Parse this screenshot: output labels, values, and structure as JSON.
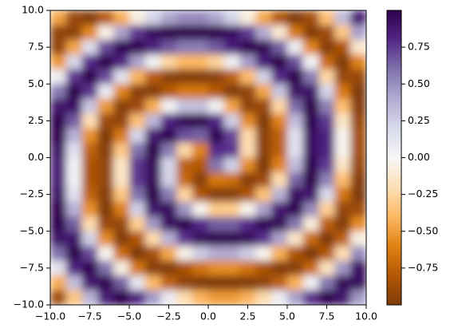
{
  "chart_data": {
    "type": "heatmap",
    "x": [
      -9.5,
      -8.5,
      -7.5,
      -6.5,
      -5.5,
      -4.5,
      -3.5,
      -2.5,
      -1.5,
      -0.5,
      0.5,
      1.5,
      2.5,
      3.5,
      4.5,
      5.5,
      6.5,
      7.5,
      8.5,
      9.5
    ],
    "y": [
      9.5,
      8.5,
      7.5,
      6.5,
      5.5,
      4.5,
      3.5,
      2.5,
      1.5,
      0.5,
      -0.5,
      -1.5,
      -2.5,
      -3.5,
      -4.5,
      -5.5,
      -6.5,
      -7.5,
      -8.5,
      -9.5
    ],
    "z": [
      [
        -0.47,
        -0.9,
        -0.99,
        -0.79,
        -0.44,
        -0.07,
        0.22,
        0.42,
        0.51,
        0.51,
        0.42,
        0.22,
        -0.08,
        -0.46,
        -0.82,
        -1,
        -0.86,
        -0.36,
        0.33,
        0.88
      ],
      [
        -0.94,
        -0.95,
        -0.58,
        -0.05,
        0.43,
        0.76,
        0.93,
        0.99,
        1,
        1,
        0.99,
        0.93,
        0.75,
        0.4,
        -0.11,
        -0.65,
        -0.98,
        -0.88,
        -0.32,
        0.44
      ],
      [
        -0.93,
        -0.47,
        0.17,
        0.71,
        0.97,
        0.98,
        0.83,
        0.67,
        0.56,
        0.56,
        0.67,
        0.84,
        0.98,
        0.96,
        0.65,
        0.06,
        -0.6,
        -0.98,
        -0.82,
        -0.13
      ],
      [
        -0.52,
        0.21,
        0.8,
        1,
        0.82,
        0.43,
        0.03,
        -0.25,
        -0.4,
        -0.4,
        -0.26,
        0.04,
        0.46,
        0.85,
        1,
        0.7,
        0.02,
        -0.71,
        -1,
        -0.61
      ],
      [
        0.06,
        0.76,
        1,
        0.71,
        0.14,
        -0.42,
        -0.78,
        -0.95,
        -0.99,
        -0.99,
        -0.95,
        -0.77,
        -0.38,
        0.23,
        0.81,
        0.99,
        0.57,
        -0.24,
        -0.9,
        -0.9
      ],
      [
        0.57,
        0.99,
        0.76,
        0.09,
        -0.59,
        -0.96,
        -0.97,
        -0.8,
        -0.65,
        -0.65,
        -0.8,
        -0.98,
        -0.93,
        -0.47,
        0.29,
        0.91,
        0.9,
        0.22,
        -0.65,
        -1
      ],
      [
        0.89,
        0.92,
        0.28,
        -0.52,
        -0.97,
        -0.88,
        -0.44,
        0.03,
        0.3,
        0.31,
        0.03,
        -0.48,
        -0.94,
        -0.9,
        -0.24,
        0.62,
        1,
        0.55,
        -0.37,
        -0.98
      ],
      [
        1,
        0.66,
        -0.2,
        -0.89,
        -0.93,
        -0.36,
        0.35,
        0.82,
        0.97,
        0.98,
        0.82,
        0.25,
        -0.57,
        -1,
        -0.6,
        0.33,
        0.97,
        0.75,
        -0.15,
        -0.91
      ],
      [
        0.98,
        0.37,
        -0.55,
        -1,
        -0.63,
        0.22,
        0.88,
        0.97,
        0.69,
        0.64,
        0.97,
        0.72,
        -0.23,
        -0.95,
        -0.76,
        0.15,
        0.92,
        0.83,
        -0.03,
        -0.86
      ],
      [
        0.91,
        0.15,
        -0.75,
        -0.97,
        -0.32,
        0.6,
        1,
        0.57,
        -0.24,
        -0.6,
        0.8,
        0.77,
        -0.21,
        -0.95,
        -0.76,
        0.15,
        0.92,
        0.83,
        -0.03,
        -0.86
      ],
      [
        0.86,
        0.03,
        -0.83,
        -0.92,
        -0.15,
        0.76,
        0.95,
        0.21,
        -0.77,
        -0.8,
        0.6,
        0.24,
        -0.57,
        -1,
        -0.6,
        0.32,
        0.97,
        0.75,
        -0.15,
        -0.91
      ],
      [
        0.86,
        0.03,
        -0.83,
        -0.92,
        -0.15,
        0.76,
        0.95,
        0.23,
        -0.72,
        -0.97,
        -0.64,
        -0.69,
        -0.97,
        -0.88,
        -0.22,
        0.63,
        1,
        0.55,
        -0.37,
        -0.98
      ],
      [
        0.91,
        0.15,
        -0.75,
        -0.97,
        -0.33,
        0.6,
        1,
        0.57,
        -0.25,
        -0.82,
        -0.98,
        -0.97,
        -0.82,
        -0.35,
        0.36,
        0.93,
        0.89,
        0.2,
        -0.66,
        -1
      ],
      [
        0.98,
        0.37,
        -0.55,
        -1,
        -0.62,
        0.24,
        0.9,
        0.94,
        0.48,
        -0.03,
        -0.31,
        -0.3,
        -0.03,
        0.44,
        0.88,
        0.97,
        0.52,
        -0.28,
        -0.92,
        -0.89
      ],
      [
        1,
        0.65,
        -0.22,
        -0.9,
        -0.91,
        -0.29,
        0.47,
        0.93,
        0.98,
        0.8,
        0.65,
        0.65,
        0.8,
        0.97,
        0.96,
        0.59,
        -0.09,
        -0.76,
        -0.99,
        -0.57
      ],
      [
        0.9,
        0.9,
        0.24,
        -0.57,
        -0.99,
        -0.81,
        -0.23,
        0.38,
        0.77,
        0.95,
        0.99,
        0.99,
        0.95,
        0.78,
        0.42,
        -0.14,
        -0.71,
        -1,
        -0.76,
        -0.06
      ],
      [
        0.61,
        1,
        0.71,
        -0.02,
        -0.7,
        -1,
        -0.85,
        -0.46,
        -0.04,
        0.26,
        0.4,
        0.4,
        0.25,
        -0.03,
        -0.43,
        -0.82,
        -1,
        -0.8,
        -0.21,
        0.52
      ],
      [
        0.13,
        0.82,
        0.98,
        0.6,
        -0.06,
        -0.65,
        -0.96,
        -0.98,
        -0.84,
        -0.67,
        -0.56,
        -0.56,
        -0.67,
        -0.83,
        -0.98,
        -0.97,
        -0.71,
        -0.17,
        0.47,
        0.93
      ],
      [
        -0.44,
        0.32,
        0.88,
        0.98,
        0.65,
        0.11,
        -0.4,
        -0.75,
        -0.93,
        -0.99,
        -1,
        -1,
        -0.99,
        -0.93,
        -0.76,
        -0.43,
        0.05,
        0.58,
        0.95,
        0.94
      ],
      [
        -0.88,
        -0.33,
        0.36,
        0.86,
        1,
        0.82,
        0.46,
        0.08,
        -0.22,
        -0.42,
        -0.51,
        -0.51,
        -0.42,
        -0.22,
        0.07,
        0.44,
        0.79,
        0.99,
        0.9,
        0.47
      ]
    ],
    "xlim": [
      -10,
      10
    ],
    "ylim": [
      -10,
      10
    ],
    "xticks": [
      {
        "value": -10,
        "label": "−10.0"
      },
      {
        "value": -7.5,
        "label": "−7.5"
      },
      {
        "value": -5,
        "label": "−5.0"
      },
      {
        "value": -2.5,
        "label": "−2.5"
      },
      {
        "value": 0,
        "label": "0.0"
      },
      {
        "value": 2.5,
        "label": "2.5"
      },
      {
        "value": 5,
        "label": "5.0"
      },
      {
        "value": 7.5,
        "label": "7.5"
      },
      {
        "value": 10,
        "label": "10.0"
      }
    ],
    "yticks": [
      {
        "value": -10,
        "label": "−10.0"
      },
      {
        "value": -7.5,
        "label": "−7.5"
      },
      {
        "value": -5,
        "label": "−5.0"
      },
      {
        "value": -2.5,
        "label": "−2.5"
      },
      {
        "value": 0,
        "label": "0.0"
      },
      {
        "value": 2.5,
        "label": "2.5"
      },
      {
        "value": 5,
        "label": "5.0"
      },
      {
        "value": 7.5,
        "label": "7.5"
      },
      {
        "value": 10,
        "label": "10.0"
      }
    ],
    "clim": [
      -1,
      1
    ],
    "cticks": [
      {
        "value": -0.75,
        "label": "−0.75"
      },
      {
        "value": -0.5,
        "label": "−0.50"
      },
      {
        "value": -0.25,
        "label": "−0.25"
      },
      {
        "value": 0,
        "label": "0.00"
      },
      {
        "value": 0.25,
        "label": "0.25"
      },
      {
        "value": 0.5,
        "label": "0.50"
      },
      {
        "value": 0.75,
        "label": "0.75"
      }
    ],
    "colormap": [
      "#7f3b08",
      "#b35806",
      "#e08214",
      "#fdb863",
      "#fee0b6",
      "#f7f7f7",
      "#d8daeb",
      "#b2abd2",
      "#8073ac",
      "#542788",
      "#2d004b"
    ]
  }
}
